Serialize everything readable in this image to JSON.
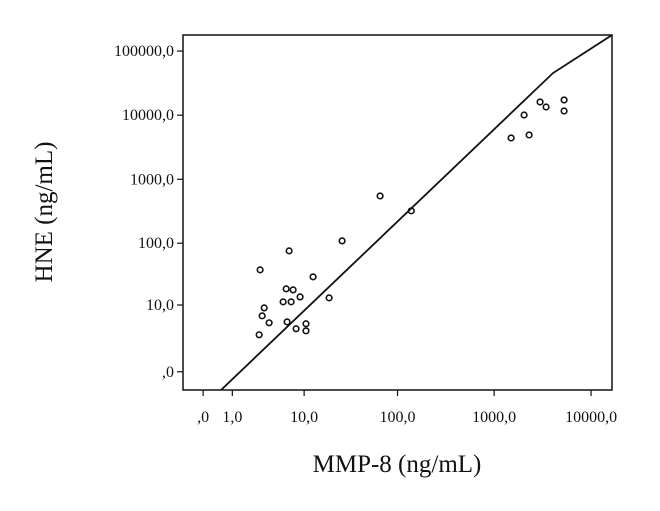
{
  "chart_data": {
    "type": "scatter",
    "xlabel": "MMP-8 (ng/mL)",
    "ylabel": "HNE (ng/mL)",
    "xscale": "log1p",
    "yscale": "log1p",
    "xlim": [
      -0.38,
      16440
    ],
    "ylim": [
      -0.48,
      177800
    ],
    "xticks": [
      {
        "value": 0,
        "label": ",0"
      },
      {
        "value": 1,
        "label": "1,0"
      },
      {
        "value": 10,
        "label": "10,0"
      },
      {
        "value": 100,
        "label": "100,0"
      },
      {
        "value": 1000,
        "label": "1000,0"
      },
      {
        "value": 10000,
        "label": "10000,0"
      }
    ],
    "yticks": [
      {
        "value": 0,
        "label": ",0"
      },
      {
        "value": 10,
        "label": "10,0"
      },
      {
        "value": 100,
        "label": "100,0"
      },
      {
        "value": 1000,
        "label": "1000,0"
      },
      {
        "value": 10000,
        "label": "10000,0"
      },
      {
        "value": 100000,
        "label": "100000,0"
      }
    ],
    "series": [
      {
        "color": "#111111",
        "x": [
          2.87,
          6.7,
          3.26,
          3.06,
          3.79,
          2.78,
          6.18,
          7.47,
          5.68,
          7.08,
          9,
          6.34,
          8.09,
          10.5,
          10.5,
          12.6,
          18.9,
          26.1,
          65.8,
          139,
          1497,
          2038,
          2296,
          2979,
          3436,
          5270,
          5270
        ],
        "values": [
          37.8,
          75.7,
          8.9,
          6.45,
          4.8,
          2.77,
          18.6,
          17.9,
          11.3,
          11.3,
          13.7,
          5.0,
          3.68,
          4.6,
          3.35,
          29.2,
          13.2,
          108.7,
          550,
          322,
          4415,
          10070,
          4920,
          16060,
          13420,
          17260,
          11620
        ]
      }
    ],
    "lines": [
      {
        "color": "#111111",
        "x": [
          0.53,
          4055,
          16440
        ],
        "values": [
          -0.48,
          45400,
          177800
        ]
      }
    ]
  }
}
